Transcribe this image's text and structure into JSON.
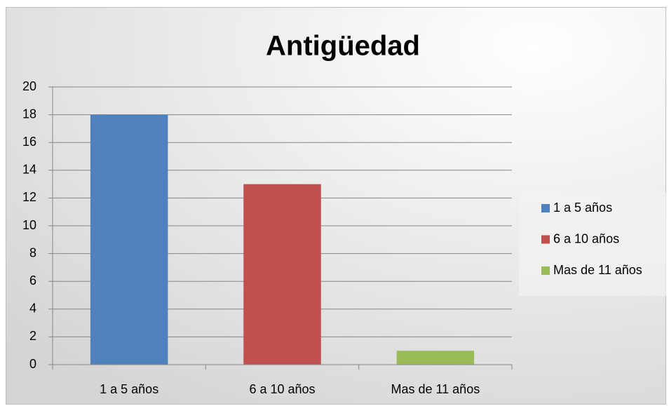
{
  "chart_data": {
    "type": "bar",
    "title": "Antigüedad",
    "categories": [
      "1 a 5 años",
      "6 a 10 años",
      "Mas de 11 años"
    ],
    "values": [
      18,
      13,
      1
    ],
    "colors": [
      "#4f81bd",
      "#c0504d",
      "#9bbb59"
    ],
    "ylim": [
      0,
      20
    ],
    "yticks": [
      0,
      2,
      4,
      6,
      8,
      10,
      12,
      14,
      16,
      18,
      20
    ],
    "grid": true,
    "legend": "right"
  }
}
